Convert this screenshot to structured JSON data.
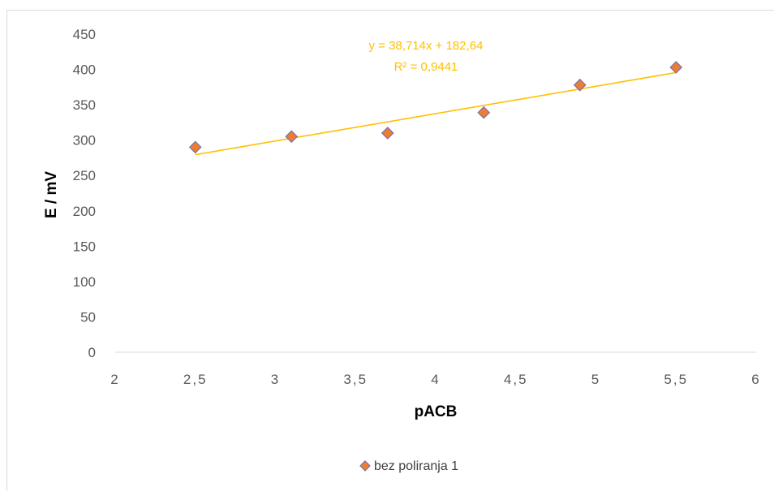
{
  "chart_data": {
    "type": "scatter",
    "xlabel": "pACB",
    "ylabel": "E / mV",
    "xlim": [
      2,
      6
    ],
    "ylim": [
      0,
      450
    ],
    "xticks": [
      "2",
      "2,5",
      "3",
      "3,5",
      "4",
      "4,5",
      "5",
      "5,5",
      "6"
    ],
    "yticks": [
      "0",
      "50",
      "100",
      "150",
      "200",
      "250",
      "300",
      "350",
      "400",
      "450"
    ],
    "grid": false,
    "legend_position": "bottom",
    "series": [
      {
        "name": "bez poliranja 1",
        "x": [
          2.5,
          3.1,
          3.7,
          4.3,
          4.9,
          5.5
        ],
        "y": [
          290,
          305,
          310,
          339,
          378,
          403
        ],
        "marker": "diamond",
        "color": "#ed7d31",
        "edge_color": "#7f6fa8"
      }
    ],
    "trendline": {
      "equation": "y = 38,714x + 182,64",
      "r_squared": "R² = 0,9441",
      "slope": 38.714,
      "intercept": 182.64,
      "x_range": [
        2.5,
        5.5
      ],
      "color": "#ffc000"
    }
  }
}
